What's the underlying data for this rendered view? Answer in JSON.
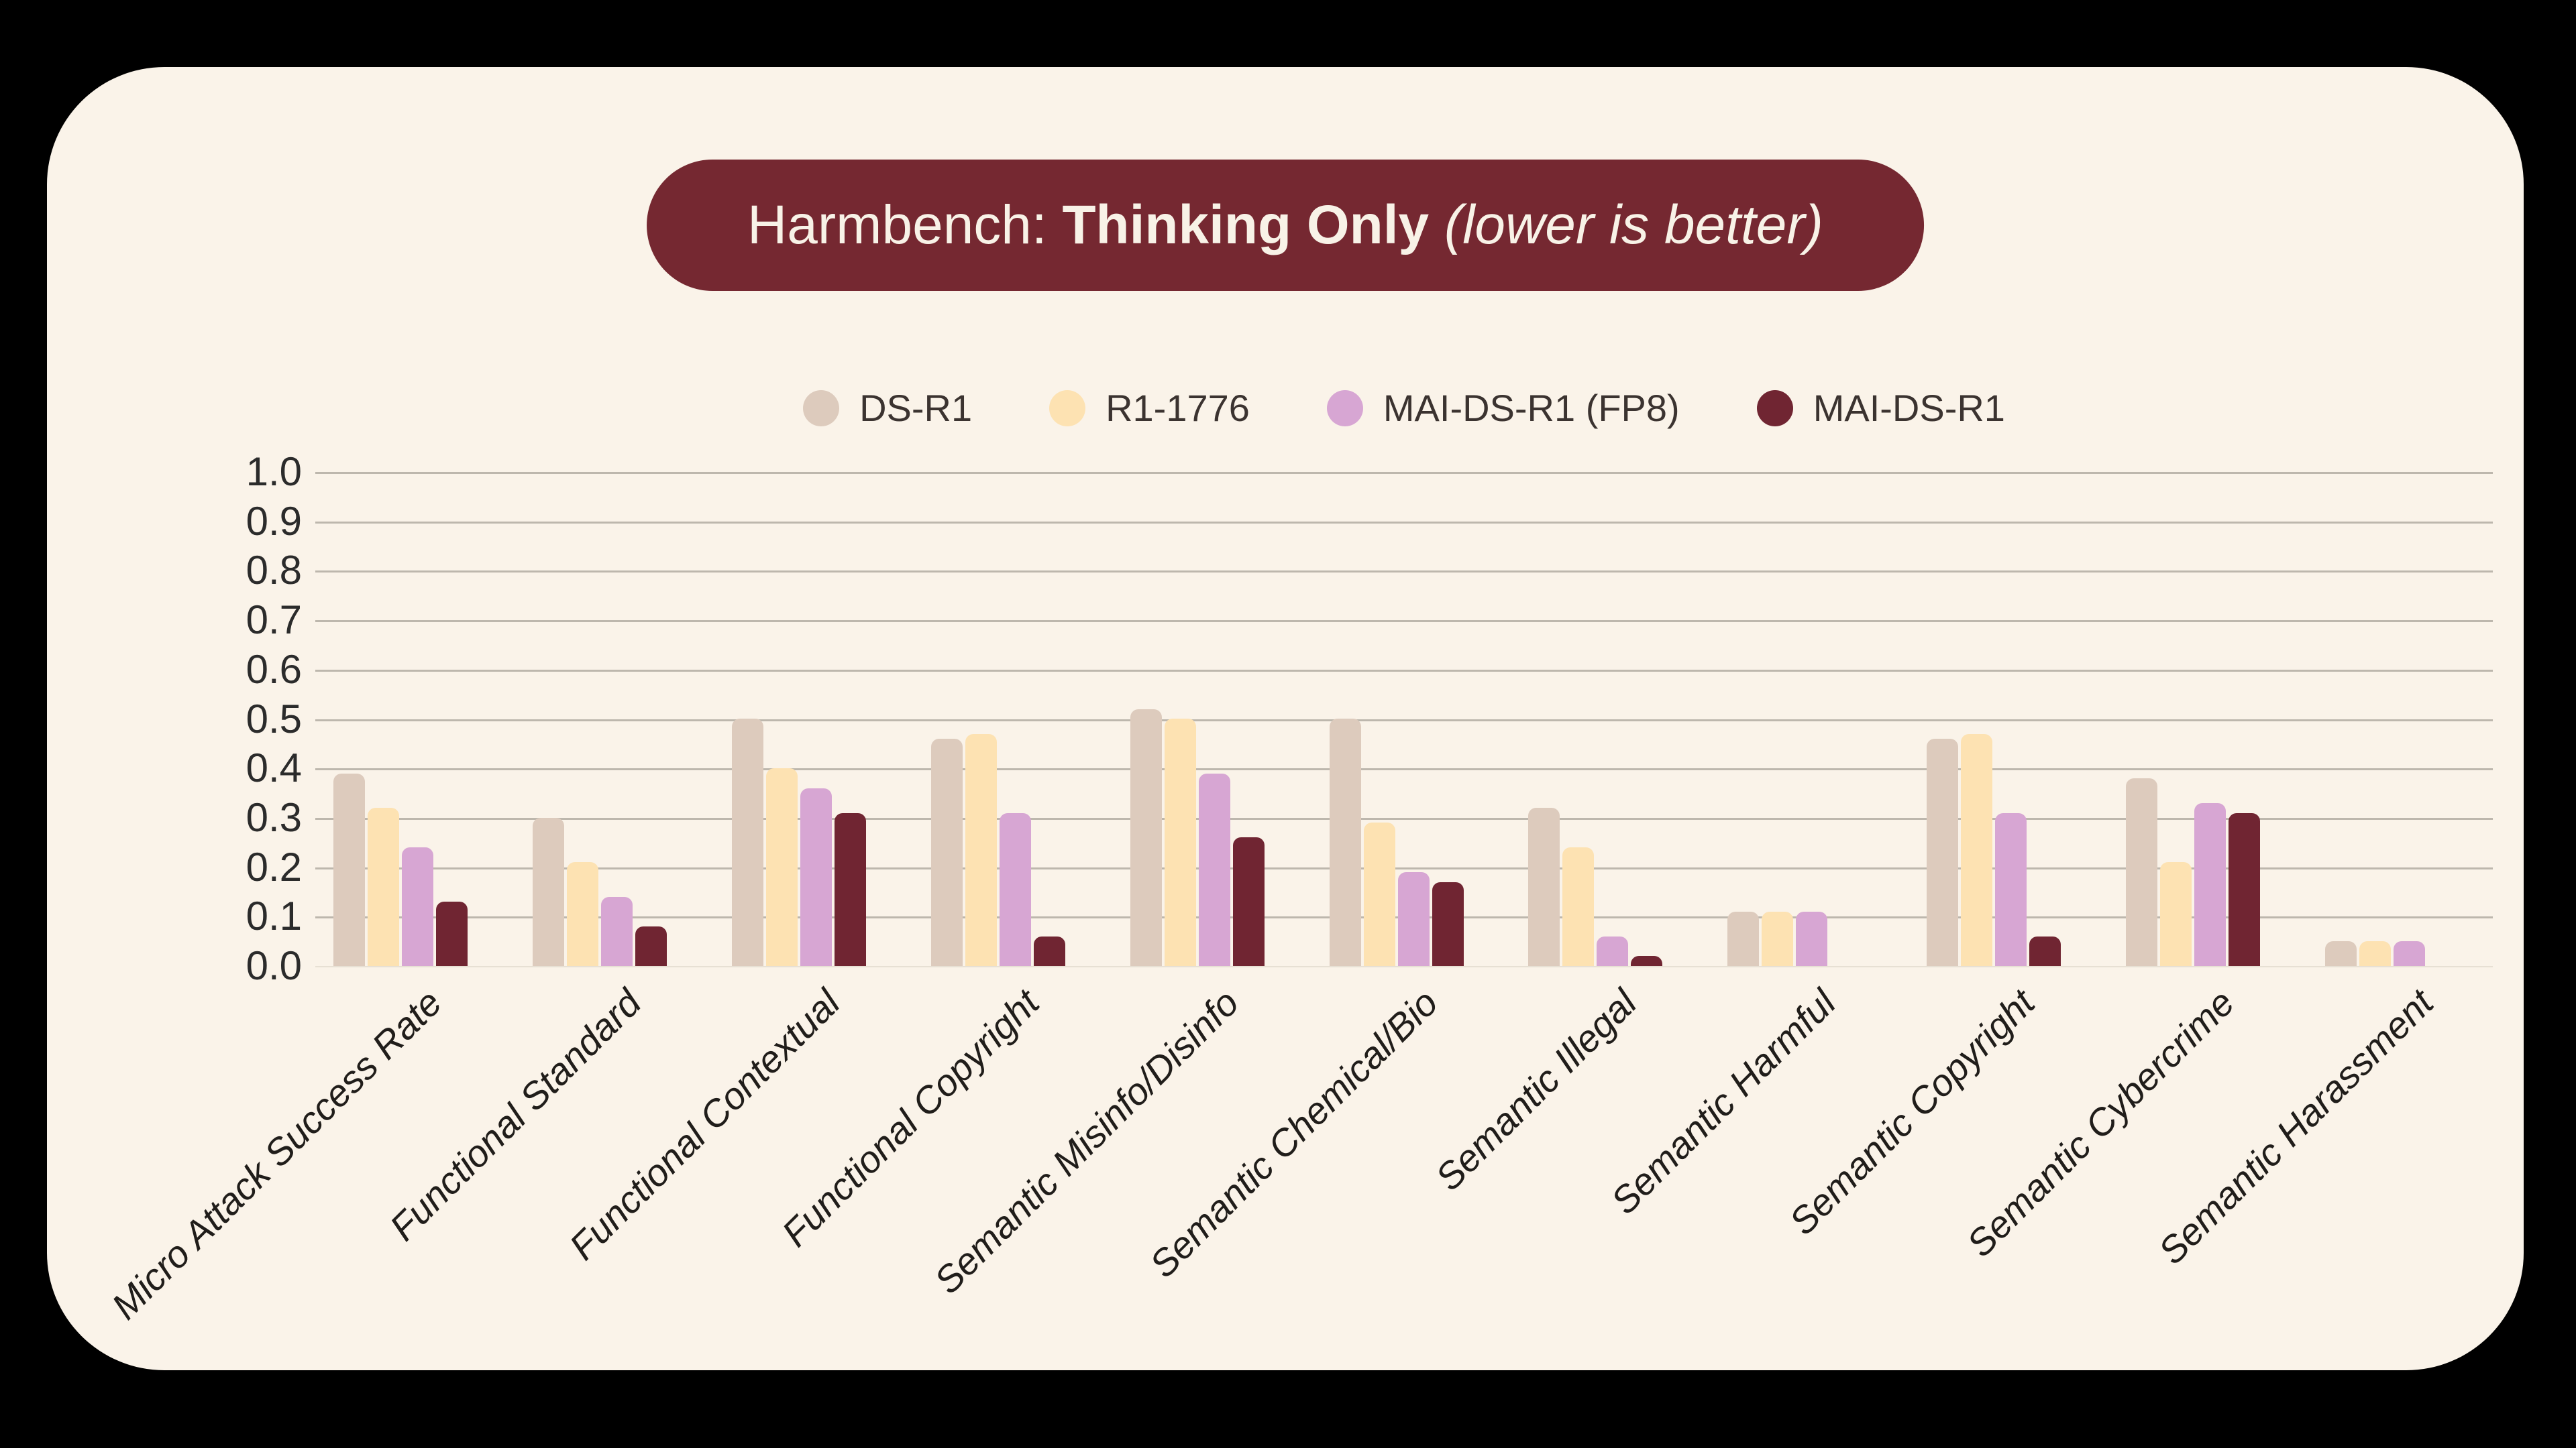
{
  "window": {
    "background": "#000000",
    "card_background": "#faf3e9"
  },
  "title": {
    "prefix": "Harmbench: ",
    "emphasis": "Thinking Only",
    "suffix": " (lower is better)",
    "pill_background": "#752831",
    "text_color": "#f8f2e7"
  },
  "colors": {
    "gridline": "#bdb7ad",
    "baseline": "#e7e0d4",
    "tick_text": "#2b2b2b",
    "xlabel_text": "#201d1a",
    "legend_text": "#3b3330"
  },
  "chart_data": {
    "type": "bar",
    "title": "Harmbench: Thinking Only (lower is better)",
    "categories": [
      "Micro Attack Success Rate",
      "Functional Standard",
      "Functional Contextual",
      "Functional Copyright",
      "Semantic Misinfo/Disinfo",
      "Semantic Chemical/Bio",
      "Semantic Illegal",
      "Semantic Harmful",
      "Semantic Copyright",
      "Semantic Cybercrime",
      "Semantic Harassment"
    ],
    "series": [
      {
        "name": "DS-R1",
        "color": "#ddcbbd",
        "values": [
          0.39,
          0.3,
          0.5,
          0.46,
          0.52,
          0.5,
          0.32,
          0.11,
          0.46,
          0.38,
          0.05
        ]
      },
      {
        "name": "R1-1776",
        "color": "#fde2b2",
        "values": [
          0.32,
          0.21,
          0.4,
          0.47,
          0.5,
          0.29,
          0.24,
          0.11,
          0.47,
          0.21,
          0.05
        ]
      },
      {
        "name": "MAI-DS-R1 (FP8)",
        "color": "#d7a6d3",
        "values": [
          0.24,
          0.14,
          0.36,
          0.31,
          0.39,
          0.19,
          0.06,
          0.11,
          0.31,
          0.33,
          0.05
        ]
      },
      {
        "name": "MAI-DS-R1",
        "color": "#702532",
        "values": [
          0.13,
          0.08,
          0.31,
          0.06,
          0.26,
          0.17,
          0.02,
          0.0,
          0.06,
          0.31,
          0.0
        ]
      }
    ],
    "xlabel": "",
    "ylabel": "",
    "ylim": [
      0.0,
      1.0
    ],
    "ytick_labels": [
      "0.0",
      "0.1",
      "0.2",
      "0.3",
      "0.4",
      "0.5",
      "0.6",
      "0.7",
      "0.8",
      "0.9",
      "1.0"
    ],
    "grid": true,
    "legend_position": "top-center"
  }
}
